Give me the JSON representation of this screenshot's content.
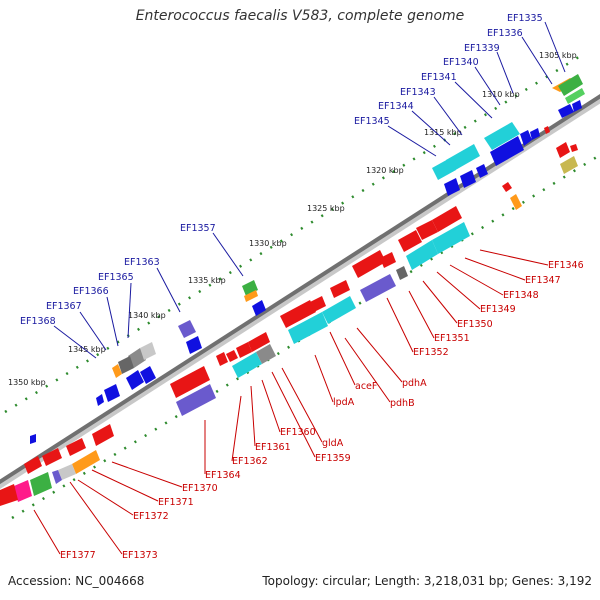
{
  "title": "Enterococcus faecalis V583, complete genome",
  "accession": "Accession: NC_004668",
  "topology": "Topology: circular; Length: 3,218,031 bp; Genes: 3,192",
  "colors": {
    "backbone": "#707070",
    "forward_label": "#1a1aa0",
    "reverse_label": "#c80000",
    "tick_dot": "#2e8b2e",
    "gene_red": "#e81515",
    "gene_blue": "#1010e0",
    "gene_cyan": "#22d0d8",
    "gene_purple": "#6a5acd",
    "gene_green": "#3cb043",
    "gene_orange": "#ff9a1a",
    "gene_gray": "#8a8a8a",
    "gene_olive": "#c8b850"
  },
  "kbp_labels": [
    "1305 kbp",
    "1310 kbp",
    "1315 kbp",
    "1320 kbp",
    "1325 kbp",
    "1330 kbp",
    "1335 kbp",
    "1340 kbp",
    "1345 kbp",
    "1350 kbp"
  ],
  "forward_labels": [
    "EF1335",
    "EF1336",
    "EF1339",
    "EF1340",
    "EF1341",
    "EF1343",
    "EF1344",
    "EF1345",
    "EF1357",
    "EF1363",
    "EF1365",
    "EF1366",
    "EF1367",
    "EF1368"
  ],
  "reverse_labels": [
    "EF1346",
    "EF1347",
    "EF1348",
    "EF1349",
    "EF1350",
    "EF1351",
    "EF1352",
    "pdhA",
    "pdhB",
    "aceF",
    "lpdA",
    "EF1359",
    "gldA",
    "EF1360",
    "EF1361",
    "EF1362",
    "EF1364",
    "EF1370",
    "EF1371",
    "EF1372",
    "EF1373",
    "EF1377"
  ]
}
